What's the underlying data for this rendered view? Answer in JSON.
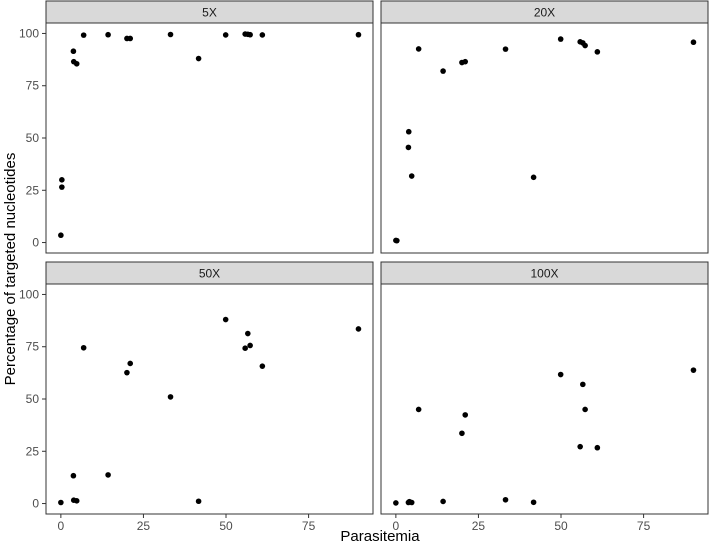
{
  "chart_data": {
    "type": "scatter",
    "xlabel": "Parasitemia",
    "ylabel": "Percentage of targeted nucleotides",
    "xlim": [
      -4.5,
      94.5
    ],
    "ylim": [
      -5,
      105
    ],
    "xticks": [
      0,
      25,
      50,
      75
    ],
    "yticks": [
      0,
      25,
      50,
      75,
      100
    ],
    "panels": [
      {
        "title": "5X",
        "points": [
          [
            0.0,
            3.5
          ],
          [
            0.3,
            26.5
          ],
          [
            0.3,
            30.0
          ],
          [
            3.8,
            91.5
          ],
          [
            3.9,
            86.5
          ],
          [
            4.8,
            85.5
          ],
          [
            6.9,
            99.2
          ],
          [
            14.3,
            99.4
          ],
          [
            20.0,
            97.6
          ],
          [
            21.0,
            97.6
          ],
          [
            33.2,
            99.5
          ],
          [
            41.7,
            88.0
          ],
          [
            49.9,
            99.3
          ],
          [
            55.8,
            99.7
          ],
          [
            56.6,
            99.6
          ],
          [
            57.3,
            99.4
          ],
          [
            61.0,
            99.3
          ],
          [
            90.1,
            99.4
          ]
        ]
      },
      {
        "title": "20X",
        "points": [
          [
            0.0,
            1.0
          ],
          [
            0.3,
            0.9
          ],
          [
            3.8,
            45.5
          ],
          [
            3.9,
            53.0
          ],
          [
            4.8,
            31.8
          ],
          [
            6.9,
            92.6
          ],
          [
            14.3,
            82.0
          ],
          [
            20.0,
            86.1
          ],
          [
            21.0,
            86.5
          ],
          [
            33.2,
            92.5
          ],
          [
            41.7,
            31.2
          ],
          [
            49.9,
            97.3
          ],
          [
            55.8,
            96.0
          ],
          [
            56.6,
            95.5
          ],
          [
            57.3,
            94.2
          ],
          [
            61.0,
            91.2
          ],
          [
            90.1,
            95.8
          ]
        ]
      },
      {
        "title": "50X",
        "points": [
          [
            0.0,
            0.5
          ],
          [
            3.8,
            13.3
          ],
          [
            3.9,
            1.6
          ],
          [
            4.8,
            1.3
          ],
          [
            6.9,
            74.5
          ],
          [
            14.3,
            13.7
          ],
          [
            20.0,
            62.6
          ],
          [
            21.0,
            67.0
          ],
          [
            33.2,
            51.0
          ],
          [
            41.7,
            1.1
          ],
          [
            49.9,
            88.0
          ],
          [
            55.8,
            74.3
          ],
          [
            56.6,
            81.3
          ],
          [
            57.3,
            75.6
          ],
          [
            61.0,
            65.7
          ],
          [
            90.1,
            83.5
          ]
        ]
      },
      {
        "title": "100X",
        "points": [
          [
            0.0,
            0.3
          ],
          [
            3.8,
            0.5
          ],
          [
            4.1,
            0.9
          ],
          [
            4.8,
            0.5
          ],
          [
            6.9,
            45.0
          ],
          [
            14.3,
            1.0
          ],
          [
            20.0,
            33.6
          ],
          [
            21.0,
            42.4
          ],
          [
            33.2,
            1.8
          ],
          [
            41.7,
            0.6
          ],
          [
            49.9,
            61.7
          ],
          [
            55.8,
            27.2
          ],
          [
            56.6,
            57.0
          ],
          [
            57.3,
            45.0
          ],
          [
            61.0,
            26.7
          ],
          [
            90.1,
            63.8
          ]
        ]
      }
    ]
  }
}
